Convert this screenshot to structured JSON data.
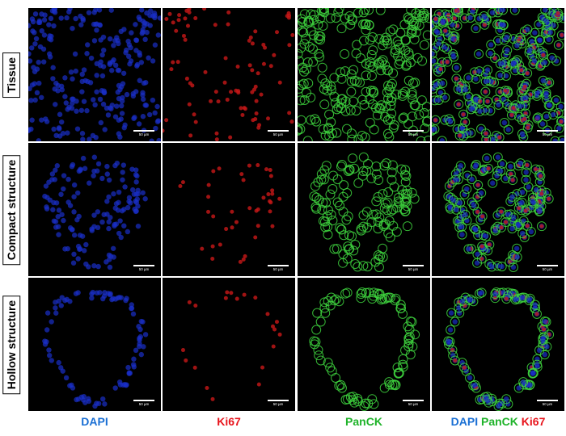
{
  "row_labels": [
    "Tissue",
    "Compact structure",
    "Hollow structure"
  ],
  "column_labels": {
    "dapi": "DAPI",
    "ki67": "Ki67",
    "panck": "PanCK",
    "merge": {
      "dapi": "DAPI",
      "panck": "PanCK",
      "ki67": "Ki67"
    }
  },
  "scale_bar": "50 µm",
  "colors": {
    "dapi": "#1a6fd4",
    "ki67": "#e8141c",
    "panck": "#1fb32a",
    "nucleus": "#1a2fc8",
    "ki67_signal": "#c81818",
    "membrane": "#3ed43e"
  }
}
